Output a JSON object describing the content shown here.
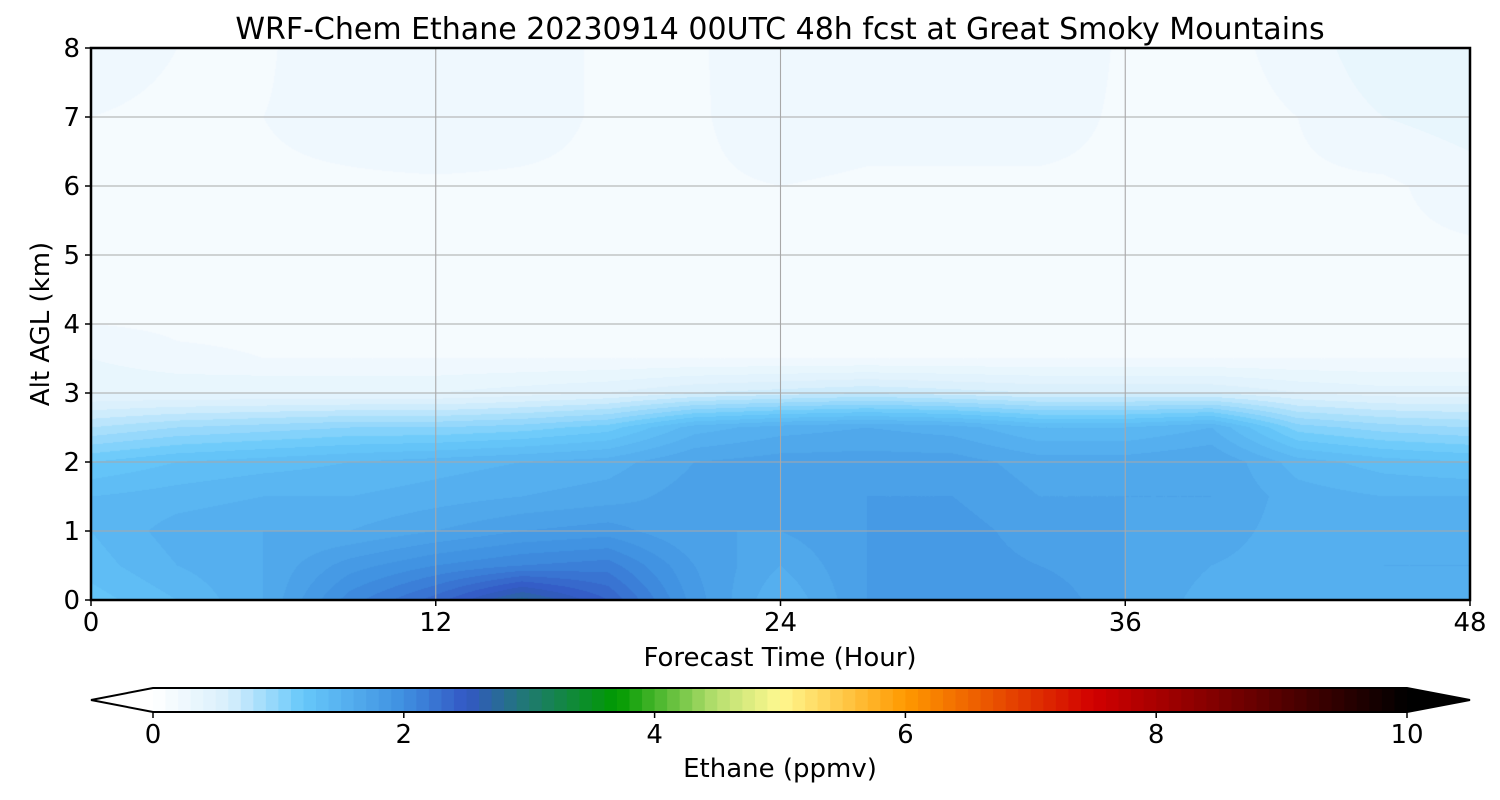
{
  "chart_data": {
    "type": "heatmap",
    "title": "WRF-Chem Ethane  20230914 00UTC 48h fcst at Great Smoky Mountains",
    "xlabel": "Forecast Time (Hour)",
    "ylabel": "Alt AGL (km)",
    "xlim": [
      0,
      48
    ],
    "ylim": [
      0,
      8
    ],
    "x_ticks": [
      0,
      12,
      24,
      36,
      48
    ],
    "y_ticks": [
      0,
      1,
      2,
      3,
      4,
      5,
      6,
      7,
      8
    ],
    "grid": true,
    "colorbar": {
      "label": "Ethane  (ppmv)",
      "min": 0,
      "max": 10,
      "ticks": [
        0,
        2,
        4,
        6,
        8,
        10
      ],
      "extend": "both",
      "orientation": "horizontal",
      "placement": "bottom",
      "color_stops": [
        {
          "value": 0.0,
          "color": "#ffffff"
        },
        {
          "value": 0.6,
          "color": "#d8effc"
        },
        {
          "value": 1.2,
          "color": "#66c8fa"
        },
        {
          "value": 2.0,
          "color": "#3f8fe0"
        },
        {
          "value": 2.5,
          "color": "#3358c4"
        },
        {
          "value": 3.0,
          "color": "#1f7a70"
        },
        {
          "value": 3.7,
          "color": "#009a00"
        },
        {
          "value": 4.5,
          "color": "#b8e070"
        },
        {
          "value": 5.0,
          "color": "#fff890"
        },
        {
          "value": 6.0,
          "color": "#ff9900"
        },
        {
          "value": 7.5,
          "color": "#d10000"
        },
        {
          "value": 8.7,
          "color": "#6e0000"
        },
        {
          "value": 10.0,
          "color": "#000000"
        }
      ]
    },
    "x": [
      0,
      3,
      6,
      9,
      12,
      15,
      18,
      21,
      24,
      27,
      30,
      33,
      36,
      39,
      42,
      45,
      48
    ],
    "y": [
      0,
      0.5,
      1,
      1.5,
      2,
      2.5,
      3,
      3.5,
      4,
      5,
      6,
      7,
      8
    ],
    "values": [
      [
        1.25,
        1.4,
        1.6,
        2.05,
        2.35,
        2.75,
        2.4,
        1.85,
        1.5,
        1.8,
        1.9,
        1.9,
        1.7,
        1.55,
        1.5,
        1.6,
        1.55
      ],
      [
        1.35,
        1.5,
        1.6,
        1.85,
        2.0,
        2.1,
        2.15,
        1.8,
        1.6,
        1.8,
        1.85,
        1.8,
        1.7,
        1.6,
        1.55,
        1.6,
        1.6
      ],
      [
        1.4,
        1.55,
        1.6,
        1.6,
        1.7,
        1.8,
        1.85,
        1.7,
        1.7,
        1.8,
        1.85,
        1.75,
        1.7,
        1.65,
        1.55,
        1.55,
        1.55
      ],
      [
        1.4,
        1.45,
        1.5,
        1.5,
        1.55,
        1.6,
        1.65,
        1.75,
        1.75,
        1.8,
        1.8,
        1.7,
        1.7,
        1.7,
        1.55,
        1.5,
        1.5
      ],
      [
        1.2,
        1.3,
        1.35,
        1.4,
        1.45,
        1.5,
        1.55,
        1.7,
        1.75,
        1.75,
        1.75,
        1.65,
        1.65,
        1.7,
        1.45,
        1.35,
        1.3
      ],
      [
        0.8,
        0.9,
        0.95,
        1.0,
        1.0,
        1.05,
        1.15,
        1.45,
        1.55,
        1.6,
        1.55,
        1.4,
        1.4,
        1.5,
        1.05,
        0.95,
        0.9
      ],
      [
        0.4,
        0.4,
        0.4,
        0.4,
        0.4,
        0.45,
        0.5,
        0.6,
        0.65,
        0.7,
        0.65,
        0.6,
        0.6,
        0.6,
        0.5,
        0.45,
        0.45
      ],
      [
        0.3,
        0.22,
        0.2,
        0.2,
        0.2,
        0.2,
        0.2,
        0.2,
        0.2,
        0.2,
        0.2,
        0.2,
        0.2,
        0.2,
        0.2,
        0.2,
        0.2
      ],
      [
        0.2,
        0.18,
        0.18,
        0.18,
        0.18,
        0.18,
        0.18,
        0.18,
        0.18,
        0.18,
        0.18,
        0.18,
        0.18,
        0.18,
        0.18,
        0.18,
        0.18
      ],
      [
        0.18,
        0.18,
        0.18,
        0.18,
        0.18,
        0.18,
        0.18,
        0.18,
        0.18,
        0.18,
        0.18,
        0.18,
        0.18,
        0.18,
        0.18,
        0.18,
        0.18
      ],
      [
        0.18,
        0.18,
        0.18,
        0.18,
        0.18,
        0.18,
        0.18,
        0.18,
        0.2,
        0.18,
        0.18,
        0.18,
        0.18,
        0.18,
        0.18,
        0.18,
        0.25
      ],
      [
        0.2,
        0.18,
        0.2,
        0.25,
        0.3,
        0.25,
        0.18,
        0.18,
        0.28,
        0.25,
        0.25,
        0.25,
        0.18,
        0.18,
        0.2,
        0.3,
        0.35
      ],
      [
        0.25,
        0.2,
        0.18,
        0.3,
        0.3,
        0.25,
        0.18,
        0.18,
        0.3,
        0.3,
        0.28,
        0.3,
        0.18,
        0.18,
        0.22,
        0.4,
        0.4
      ]
    ]
  }
}
